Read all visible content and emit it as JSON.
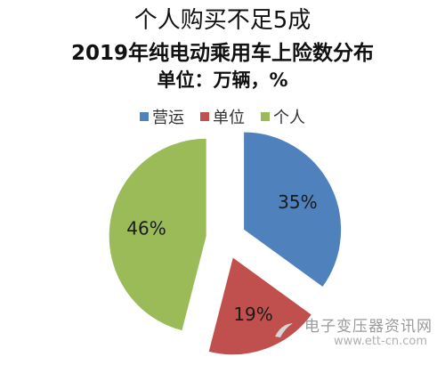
{
  "titles": {
    "line1": "个人购买不足5成",
    "line2": "2019年纯电动乘用车上险数分布",
    "line3": "单位：万辆，%"
  },
  "legend": [
    {
      "label": "营运",
      "color": "#4f81bd"
    },
    {
      "label": "单位",
      "color": "#c0504d"
    },
    {
      "label": "个人",
      "color": "#9bbb59"
    }
  ],
  "chart_data": {
    "type": "pie",
    "title": "2019年纯电动乘用车上险数分布",
    "series": [
      {
        "name": "营运",
        "value": 35,
        "label": "35%",
        "color": "#4f81bd"
      },
      {
        "name": "单位",
        "value": 19,
        "label": "19%",
        "color": "#c0504d"
      },
      {
        "name": "个人",
        "value": 46,
        "label": "46%",
        "color": "#9bbb59"
      }
    ],
    "exploded": true,
    "legend_position": "top"
  },
  "watermark": {
    "site_name": "电子变压器资讯网",
    "url": "www.ett-cn.com"
  }
}
